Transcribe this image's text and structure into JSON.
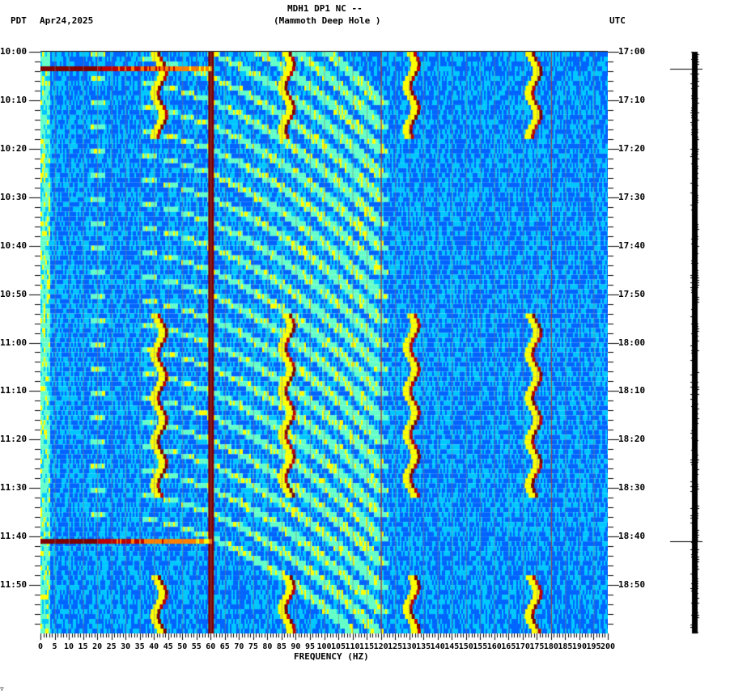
{
  "header": {
    "left_tz": "PDT",
    "date": "Apr24,2025",
    "title": "MDH1 DP1 NC --",
    "subtitle": "(Mammoth Deep Hole )",
    "right_tz": "UTC"
  },
  "footer_mark": "∵",
  "chart_data": {
    "type": "heatmap",
    "title": "MDH1 DP1 NC -- (Mammoth Deep Hole )",
    "xlabel": "FREQUENCY (HZ)",
    "ylabel_left": "PDT",
    "ylabel_right": "UTC",
    "xlim": [
      0,
      200
    ],
    "x_ticks": [
      0,
      5,
      10,
      15,
      20,
      25,
      30,
      35,
      40,
      45,
      50,
      55,
      60,
      65,
      70,
      75,
      80,
      85,
      90,
      95,
      100,
      105,
      110,
      115,
      120,
      125,
      130,
      135,
      140,
      145,
      150,
      155,
      160,
      165,
      170,
      175,
      180,
      185,
      190,
      195,
      200
    ],
    "y_ticks_left": [
      "10:00",
      "10:10",
      "10:20",
      "10:30",
      "10:40",
      "10:50",
      "11:00",
      "11:10",
      "11:20",
      "11:30",
      "11:40",
      "11:50"
    ],
    "y_ticks_right": [
      "17:00",
      "17:10",
      "17:20",
      "17:30",
      "17:40",
      "17:50",
      "18:00",
      "18:10",
      "18:20",
      "18:30",
      "18:40",
      "18:50"
    ],
    "time_span_minutes": 120,
    "colormap": [
      "#0000c8",
      "#0064ff",
      "#00c8ff",
      "#64ffc8",
      "#ffff00",
      "#ff8000",
      "#c00000",
      "#800000"
    ],
    "features": {
      "persistent_lines_hz": [
        60,
        120,
        180
      ],
      "broadband_events_min": [
        3.5,
        101
      ],
      "wandering_tones_hz": [
        43,
        88,
        132,
        175
      ],
      "chirp_sweeps": "Recurring curved gliding bands ~every 5-10 min from ~20 Hz to ~120 Hz"
    }
  },
  "trace_strip": {
    "event_marks_min": [
      3.5,
      101
    ]
  }
}
